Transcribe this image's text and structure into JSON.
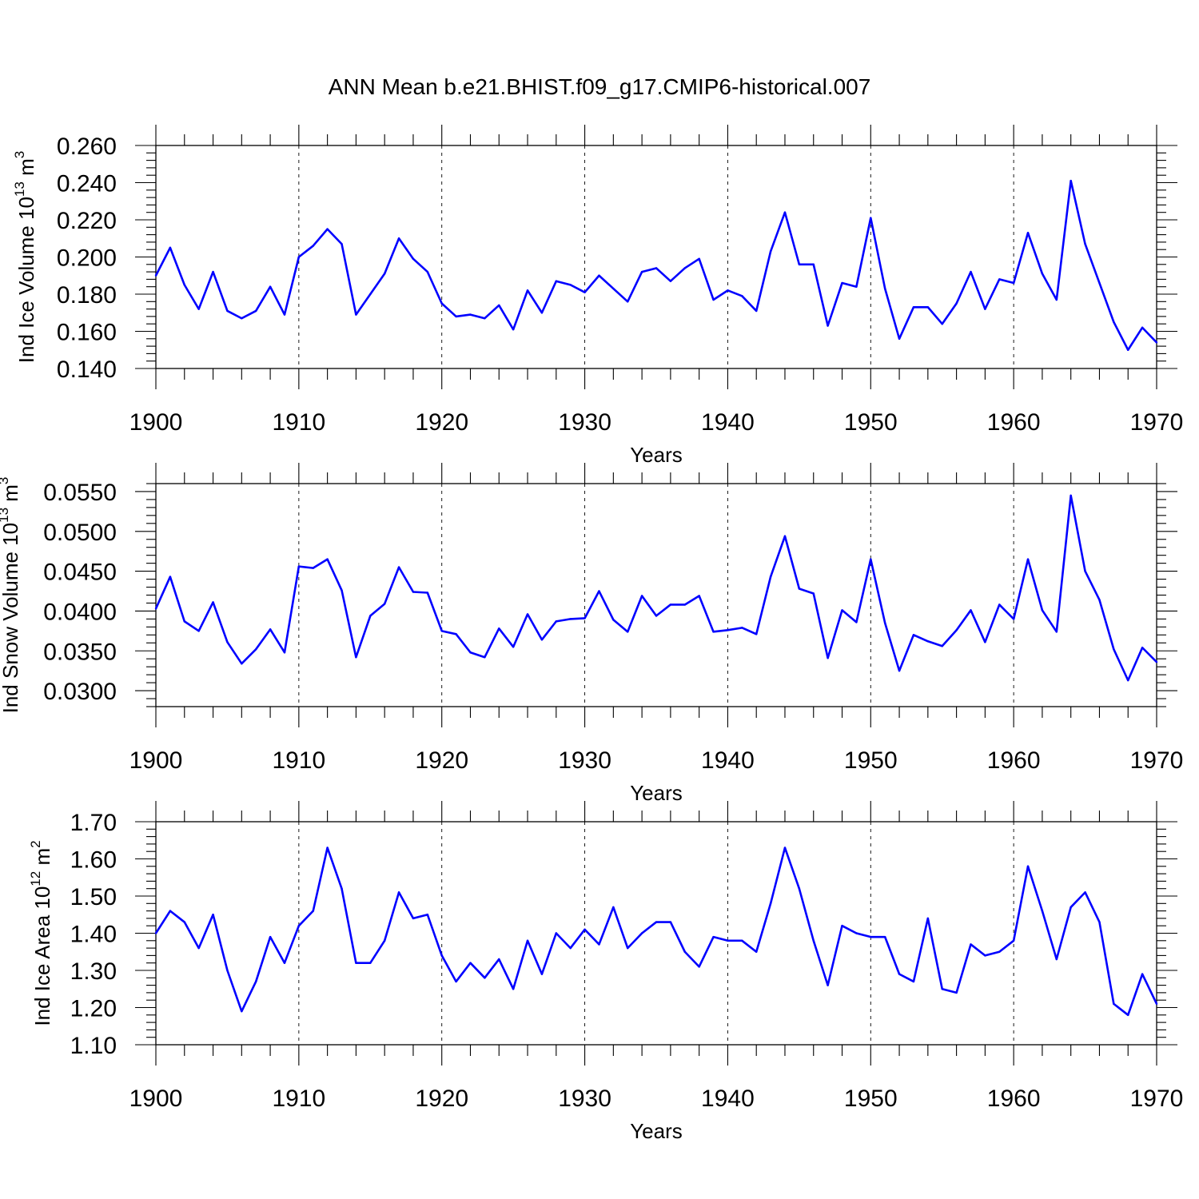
{
  "title": "ANN Mean b.e21.BHIST.f09_g17.CMIP6-historical.007",
  "chart_data": [
    {
      "type": "line",
      "ylabel": "Ind Ice Volume 10",
      "ylabel_exp": "13",
      "ylabel_unit": " m",
      "ylabel_unit_exp": "3",
      "xlabel": "Years",
      "xlim": [
        1900,
        1970
      ],
      "ylim": [
        0.14,
        0.26
      ],
      "yticks": [
        0.14,
        0.16,
        0.18,
        0.2,
        0.22,
        0.24,
        0.26
      ],
      "ytick_labels": [
        "0.140",
        "0.160",
        "0.180",
        "0.200",
        "0.220",
        "0.240",
        "0.260"
      ],
      "xticks": [
        1900,
        1910,
        1920,
        1930,
        1940,
        1950,
        1960,
        1970
      ],
      "xtick_labels": [
        "1900",
        "1910",
        "1920",
        "1930",
        "1940",
        "1950",
        "1960",
        "1970"
      ],
      "series": [
        {
          "name": "Ind Ice Volume",
          "color": "#0000ff",
          "values": [
            0.19,
            0.205,
            0.185,
            0.172,
            0.192,
            0.171,
            0.167,
            0.171,
            0.184,
            0.169,
            0.2,
            0.206,
            0.215,
            0.207,
            0.169,
            0.18,
            0.191,
            0.21,
            0.199,
            0.192,
            0.175,
            0.168,
            0.169,
            0.167,
            0.174,
            0.161,
            0.182,
            0.17,
            0.187,
            0.185,
            0.181,
            0.19,
            0.183,
            0.176,
            0.192,
            0.194,
            0.187,
            0.194,
            0.199,
            0.177,
            0.182,
            0.179,
            0.171,
            0.203,
            0.224,
            0.196,
            0.196,
            0.163,
            0.186,
            0.184,
            0.221,
            0.183,
            0.156,
            0.173,
            0.173,
            0.164,
            0.175,
            0.192,
            0.172,
            0.188,
            0.186,
            0.213,
            0.191,
            0.177,
            0.241,
            0.207,
            0.186,
            0.165,
            0.15,
            0.162,
            0.154
          ]
        }
      ]
    },
    {
      "type": "line",
      "ylabel": "Ind Snow Volume 10",
      "ylabel_exp": "13",
      "ylabel_unit": " m",
      "ylabel_unit_exp": "3",
      "xlabel": "Years",
      "xlim": [
        1900,
        1970
      ],
      "ylim": [
        0.028,
        0.056
      ],
      "yticks": [
        0.03,
        0.035,
        0.04,
        0.045,
        0.05,
        0.055
      ],
      "ytick_labels": [
        "0.0300",
        "0.0350",
        "0.0400",
        "0.0450",
        "0.0500",
        "0.0550"
      ],
      "xticks": [
        1900,
        1910,
        1920,
        1930,
        1940,
        1950,
        1960,
        1970
      ],
      "xtick_labels": [
        "1900",
        "1910",
        "1920",
        "1930",
        "1940",
        "1950",
        "1960",
        "1970"
      ],
      "series": [
        {
          "name": "Ind Snow Volume",
          "color": "#0000ff",
          "values": [
            0.0403,
            0.0443,
            0.0387,
            0.0375,
            0.0411,
            0.0361,
            0.0334,
            0.0352,
            0.0377,
            0.0348,
            0.0456,
            0.0454,
            0.0465,
            0.0426,
            0.0342,
            0.0394,
            0.0409,
            0.0455,
            0.0424,
            0.0423,
            0.0375,
            0.0371,
            0.0348,
            0.0342,
            0.0378,
            0.0355,
            0.0396,
            0.0364,
            0.0387,
            0.039,
            0.0391,
            0.0425,
            0.0389,
            0.0374,
            0.0419,
            0.0394,
            0.0408,
            0.0408,
            0.0419,
            0.0374,
            0.0376,
            0.0379,
            0.0371,
            0.0443,
            0.0494,
            0.0428,
            0.0422,
            0.0341,
            0.0401,
            0.0386,
            0.0465,
            0.0385,
            0.0325,
            0.037,
            0.0362,
            0.0356,
            0.0376,
            0.0401,
            0.0361,
            0.0408,
            0.039,
            0.0465,
            0.0401,
            0.0374,
            0.0545,
            0.045,
            0.0414,
            0.0352,
            0.0313,
            0.0354,
            0.0336
          ]
        }
      ]
    },
    {
      "type": "line",
      "ylabel": "Ind Ice Area 10",
      "ylabel_exp": "12",
      "ylabel_unit": " m",
      "ylabel_unit_exp": "2",
      "xlabel": "Years",
      "xlim": [
        1900,
        1970
      ],
      "ylim": [
        1.1,
        1.7
      ],
      "yticks": [
        1.1,
        1.2,
        1.3,
        1.4,
        1.5,
        1.6,
        1.7
      ],
      "ytick_labels": [
        "1.10",
        "1.20",
        "1.30",
        "1.40",
        "1.50",
        "1.60",
        "1.70"
      ],
      "xticks": [
        1900,
        1910,
        1920,
        1930,
        1940,
        1950,
        1960,
        1970
      ],
      "xtick_labels": [
        "1900",
        "1910",
        "1920",
        "1930",
        "1940",
        "1950",
        "1960",
        "1970"
      ],
      "series": [
        {
          "name": "Ind Ice Area",
          "color": "#0000ff",
          "values": [
            1.4,
            1.46,
            1.43,
            1.36,
            1.45,
            1.3,
            1.19,
            1.27,
            1.39,
            1.32,
            1.42,
            1.46,
            1.63,
            1.52,
            1.32,
            1.32,
            1.38,
            1.51,
            1.44,
            1.45,
            1.34,
            1.27,
            1.32,
            1.28,
            1.33,
            1.25,
            1.38,
            1.29,
            1.4,
            1.36,
            1.41,
            1.37,
            1.47,
            1.36,
            1.4,
            1.43,
            1.43,
            1.35,
            1.31,
            1.39,
            1.38,
            1.38,
            1.35,
            1.48,
            1.63,
            1.52,
            1.38,
            1.26,
            1.42,
            1.4,
            1.39,
            1.39,
            1.29,
            1.27,
            1.44,
            1.25,
            1.24,
            1.37,
            1.34,
            1.35,
            1.38,
            1.58,
            1.46,
            1.33,
            1.47,
            1.51,
            1.43,
            1.21,
            1.18,
            1.29,
            1.21
          ]
        }
      ]
    }
  ]
}
